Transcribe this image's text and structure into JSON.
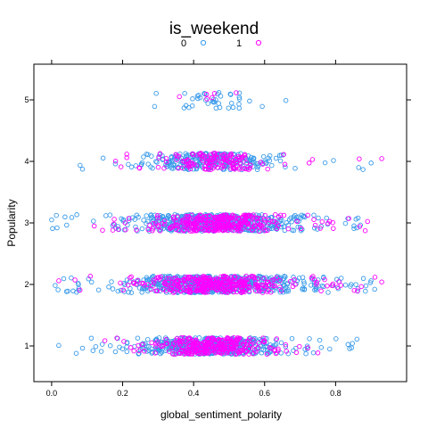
{
  "chart_data": {
    "type": "scatter",
    "title": "is_weekend",
    "xlabel": "global_sentiment_polarity",
    "ylabel": "Popularity",
    "xlim": [
      -0.05,
      1.0
    ],
    "ylim": [
      0.42,
      5.58
    ],
    "x_ticks": [
      0.0,
      0.2,
      0.4,
      0.6,
      0.8
    ],
    "x_tick_labels": [
      "0.0",
      "0.2",
      "0.4",
      "0.6",
      "0.8"
    ],
    "y_ticks": [
      1,
      2,
      3,
      4,
      5
    ],
    "y_tick_labels": [
      "1",
      "2",
      "3",
      "4",
      "5"
    ],
    "jitter": "vertical",
    "marker": "open-circle",
    "grid": false,
    "legend_position": "top",
    "series": [
      {
        "name": "0",
        "color": "#3a9bea",
        "groups": [
          {
            "y": 1,
            "x_range": [
              0.02,
              0.86
            ],
            "core": [
              0.28,
              0.62
            ],
            "count": 520
          },
          {
            "y": 2,
            "x_range": [
              0.01,
              0.91
            ],
            "core": [
              0.24,
              0.68
            ],
            "count": 600
          },
          {
            "y": 3,
            "x_range": [
              0.0,
              0.87
            ],
            "core": [
              0.26,
              0.66
            ],
            "count": 560
          },
          {
            "y": 4,
            "x_range": [
              0.08,
              0.9
            ],
            "core": [
              0.28,
              0.62
            ],
            "count": 260
          },
          {
            "y": 5,
            "x_range": [
              0.29,
              0.66
            ],
            "core": [
              0.33,
              0.6
            ],
            "count": 40
          }
        ]
      },
      {
        "name": "1",
        "color": "#ff00ff",
        "groups": [
          {
            "y": 1,
            "x_range": [
              0.15,
              0.75
            ],
            "core": [
              0.34,
              0.58
            ],
            "count": 280
          },
          {
            "y": 2,
            "x_range": [
              0.02,
              0.93
            ],
            "core": [
              0.3,
              0.64
            ],
            "count": 340
          },
          {
            "y": 3,
            "x_range": [
              0.12,
              0.89
            ],
            "core": [
              0.32,
              0.62
            ],
            "count": 320
          },
          {
            "y": 4,
            "x_range": [
              0.18,
              0.93
            ],
            "core": [
              0.34,
              0.58
            ],
            "count": 140
          },
          {
            "y": 5,
            "x_range": [
              0.36,
              0.52
            ],
            "core": [
              0.38,
              0.5
            ],
            "count": 6
          }
        ]
      }
    ]
  }
}
